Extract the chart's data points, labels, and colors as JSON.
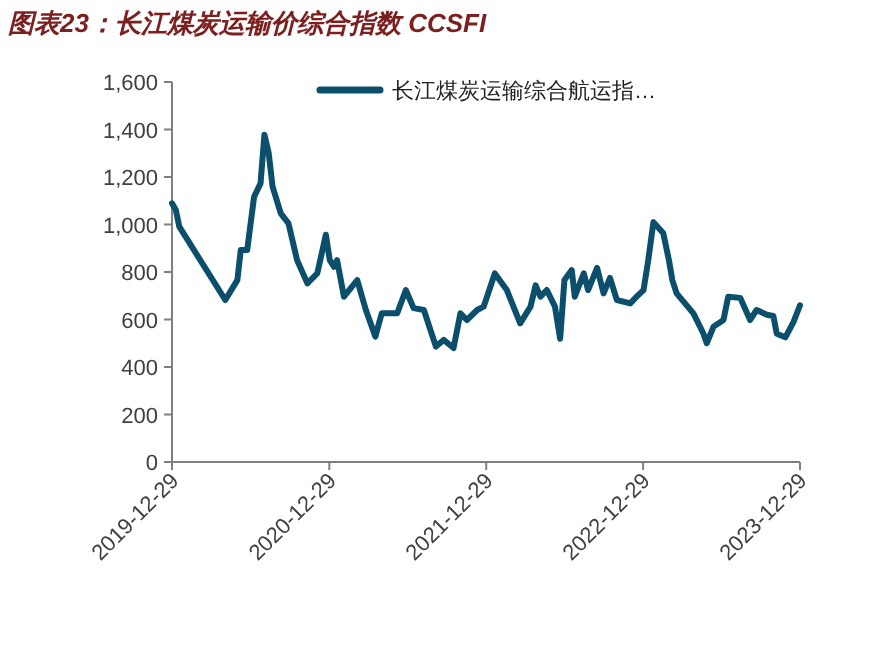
{
  "chart_data": {
    "type": "line",
    "title": "图表23：长江煤炭运输价综合指数 CCSFI",
    "legend": "top",
    "xlim": [
      "2019-12-29",
      "2023-12-29"
    ],
    "xticks": [
      {
        "value": "2019-12-29",
        "label": "2019-12-29"
      },
      {
        "value": "2020-12-29",
        "label": "2020-12-29"
      },
      {
        "value": "2021-12-29",
        "label": "2021-12-29"
      },
      {
        "value": "2022-12-29",
        "label": "2022-12-29"
      },
      {
        "value": "2023-12-29",
        "label": "2023-12-29"
      }
    ],
    "ylim": [
      0,
      1600
    ],
    "yticks": [
      0,
      200,
      400,
      600,
      800,
      {
        "value": 1000,
        "label": "1,000"
      },
      {
        "value": 1200,
        "label": "1,200"
      },
      {
        "value": 1400,
        "label": "1,400"
      },
      {
        "value": 1600,
        "label": "1,600"
      }
    ],
    "series": [
      {
        "name": "长江煤炭运输综合航运指…",
        "color": "#0b4f6c",
        "x": [
          "2019-12-29",
          "2020-01-07",
          "2020-01-15",
          "2020-05-01",
          "2020-05-29",
          "2020-06-06",
          "2020-06-21",
          "2020-07-07",
          "2020-07-22",
          "2020-07-31",
          "2020-08-10",
          "2020-08-19",
          "2020-09-07",
          "2020-09-25",
          "2020-10-15",
          "2020-11-08",
          "2020-12-01",
          "2020-12-21",
          "2020-12-30",
          "2021-01-09",
          "2021-01-16",
          "2021-02-01",
          "2021-03-04",
          "2021-03-24",
          "2021-04-15",
          "2021-04-30",
          "2021-06-05",
          "2021-06-25",
          "2021-07-13",
          "2021-08-06",
          "2021-09-03",
          "2021-09-21",
          "2021-10-14",
          "2021-10-30",
          "2021-11-14",
          "2021-12-08",
          "2021-12-23",
          "2022-01-18",
          "2022-02-15",
          "2022-03-18",
          "2022-04-11",
          "2022-04-23",
          "2022-05-04",
          "2022-05-19",
          "2022-06-07",
          "2022-06-19",
          "2022-06-29",
          "2022-07-16",
          "2022-07-23",
          "2022-08-13",
          "2022-08-23",
          "2022-09-13",
          "2022-09-28",
          "2022-10-13",
          "2022-10-29",
          "2022-11-29",
          "2022-12-14",
          "2022-12-30",
          "2023-01-10",
          "2023-01-22",
          "2023-02-14",
          "2023-02-27",
          "2023-03-07",
          "2023-03-17",
          "2023-04-25",
          "2023-05-18",
          "2023-05-26",
          "2023-06-11",
          "2023-07-04",
          "2023-07-15",
          "2023-08-12",
          "2023-09-04",
          "2023-09-19",
          "2023-10-13",
          "2023-10-28",
          "2023-11-05",
          "2023-11-25",
          "2023-12-14",
          "2023-12-29"
        ],
        "values": [
          1089,
          1061,
          991,
          682,
          766,
          893,
          893,
          1117,
          1173,
          1378,
          1300,
          1159,
          1047,
          1005,
          850,
          752,
          794,
          957,
          850,
          822,
          850,
          696,
          766,
          640,
          528,
          626,
          626,
          724,
          648,
          640,
          486,
          514,
          480,
          626,
          598,
          640,
          654,
          794,
          724,
          584,
          654,
          744,
          696,
          724,
          654,
          519,
          766,
          808,
          696,
          794,
          724,
          817,
          710,
          775,
          682,
          668,
          696,
          724,
          850,
          1010,
          963,
          850,
          766,
          710,
          626,
          542,
          500,
          570,
          598,
          696,
          691,
          598,
          640,
          620,
          615,
          540,
          525,
          590,
          660
        ]
      }
    ]
  }
}
